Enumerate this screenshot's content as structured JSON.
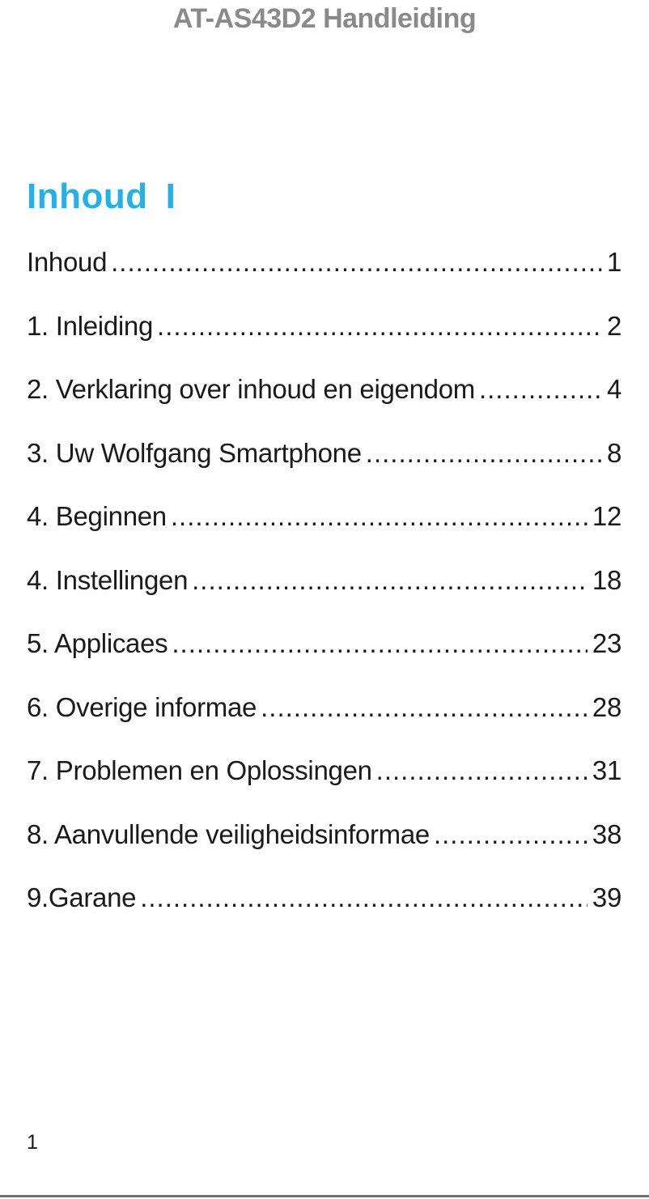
{
  "header": {
    "title": "AT-AS43D2 Handleiding"
  },
  "toc": {
    "heading": "Inhoud",
    "heading_suffix": "I",
    "entries": [
      {
        "title": "Inhoud",
        "page": "1"
      },
      {
        "title": "1. Inleiding",
        "page": "2"
      },
      {
        "title": "2. Verklaring over inhoud en eigendom",
        "page": "4"
      },
      {
        "title": "3. Uw Wolfgang Smartphone",
        "page": "8"
      },
      {
        "title": "4. Beginnen",
        "page": "12"
      },
      {
        "title": "4. Instellingen",
        "page": "18"
      },
      {
        "title": "5. Applicaes",
        "page": "23"
      },
      {
        "title": "6. Overige informae",
        "page": "28"
      },
      {
        "title": "7. Problemen en Oplossingen",
        "page": "31"
      },
      {
        "title": "8. Aanvullende veiligheidsinformae",
        "page": "38"
      },
      {
        "title": "9.Garane",
        "page": "39"
      }
    ]
  },
  "footer": {
    "page_number": "1"
  },
  "colors": {
    "accent_cyan": "#25b1e7",
    "header_gray": "#8a8a8a",
    "text": "#1a1a1a",
    "divider_gray": "#707070"
  }
}
